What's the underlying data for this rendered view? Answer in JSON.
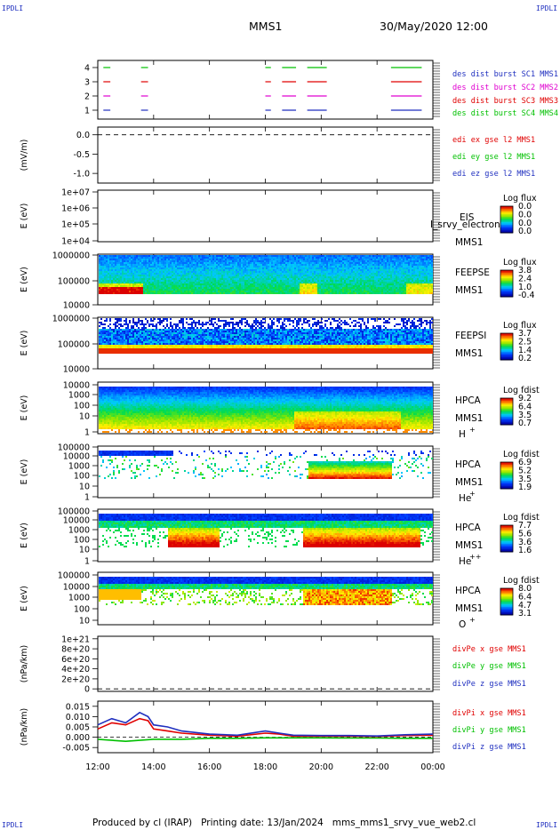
{
  "header": {
    "left_title": "MMS1",
    "right_title": "30/May/2020 12:00"
  },
  "corners": {
    "tl": "IPDLI",
    "tr": "IPDLI",
    "bl": "IPDLI",
    "br": "IPDLI"
  },
  "footer": {
    "produced": "Produced by cl (IRAP)",
    "printing": "Printing date: 13/Jan/2024",
    "file": "mms_mms1_srvy_vue_web2.cl"
  },
  "colors": {
    "blue": "#1f2fbf",
    "magenta": "#e000d0",
    "red": "#e00000",
    "green": "#00c000",
    "black": "#000000"
  },
  "chart_data": [
    {
      "id": "burst",
      "type": "line",
      "x_range": [
        "12:00",
        "00:00"
      ],
      "ylim": [
        0.5,
        4.5
      ],
      "yticks": [
        "4",
        "3",
        "2",
        "1"
      ],
      "legend": [
        {
          "label": "des dist burst SC1 MMS1",
          "color": "#1f2fbf"
        },
        {
          "label": "des dist burst SC2 MMS2",
          "color": "#e000d0"
        },
        {
          "label": "des dist burst SC3 MMS3",
          "color": "#e00000"
        },
        {
          "label": "des dist burst SC4 MMS4",
          "color": "#00c000"
        }
      ],
      "intervals_hours": [
        [
          12.2,
          12.45
        ],
        [
          13.55,
          13.8
        ],
        [
          18.0,
          18.2
        ],
        [
          18.6,
          19.1
        ],
        [
          19.5,
          20.2
        ],
        [
          22.5,
          23.6
        ]
      ]
    },
    {
      "id": "edi",
      "type": "line",
      "ylabel": "(mV/m)",
      "ylim": [
        -1.25,
        0.2
      ],
      "yticks": [
        "0.0",
        "-0.5",
        "-1.0"
      ],
      "series_value": 0.0,
      "legend": [
        {
          "label": "edi ex gse l2 MMS1",
          "color": "#e00000"
        },
        {
          "label": "edi ey gse l2 MMS1",
          "color": "#00c000"
        },
        {
          "label": "edi ez gse l2 MMS1",
          "color": "#1f2fbf"
        }
      ]
    },
    {
      "id": "eis",
      "type": "heatmap",
      "ylabel": "E (eV)",
      "yticks": [
        "1e+07",
        "1e+06",
        "1e+05",
        "1e+04"
      ],
      "instrument": [
        "EIS",
        "MMS1"
      ],
      "overlay_text": "I_srvy_electron to",
      "colorbar": {
        "title": "Log flux",
        "labels": [
          "0.0",
          "0.0",
          "0.0",
          "0.0"
        ]
      }
    },
    {
      "id": "feepse",
      "type": "heatmap",
      "ylabel": "E (eV)",
      "yticks": [
        "1000000",
        "100000",
        "10000"
      ],
      "instrument": [
        "FEEPSE",
        "MMS1"
      ],
      "colorbar": {
        "title": "Log flux",
        "labels": [
          "3.8",
          "2.4",
          "1.0",
          "-0.4"
        ]
      }
    },
    {
      "id": "feepsi",
      "type": "heatmap",
      "ylabel": "E (eV)",
      "yticks": [
        "1000000",
        "100000",
        "10000"
      ],
      "instrument": [
        "FEEPSI",
        "MMS1"
      ],
      "colorbar": {
        "title": "Log flux",
        "labels": [
          "3.7",
          "2.5",
          "1.4",
          "0.2"
        ]
      }
    },
    {
      "id": "hpca_h",
      "type": "heatmap",
      "ylabel": "E (eV)",
      "yticks": [
        "10000",
        "1000",
        "100",
        "10",
        "1"
      ],
      "instrument": [
        "HPCA",
        "MMS1"
      ],
      "species": "H",
      "charge": "+",
      "colorbar": {
        "title": "Log fdist",
        "labels": [
          "9.2",
          "6.4",
          "3.5",
          "0.7"
        ]
      }
    },
    {
      "id": "hpca_he",
      "type": "heatmap",
      "ylabel": "E (eV)",
      "yticks": [
        "100000",
        "10000",
        "1000",
        "100",
        "10",
        "1"
      ],
      "instrument": [
        "HPCA",
        "MMS1"
      ],
      "species": "He",
      "charge": "+",
      "colorbar": {
        "title": "Log fdist",
        "labels": [
          "6.9",
          "5.2",
          "3.5",
          "1.9"
        ]
      }
    },
    {
      "id": "hpca_hepp",
      "type": "heatmap",
      "ylabel": "E (eV)",
      "yticks": [
        "100000",
        "10000",
        "1000",
        "100",
        "10",
        "1"
      ],
      "instrument": [
        "HPCA",
        "MMS1"
      ],
      "species": "He",
      "charge": "++",
      "colorbar": {
        "title": "Log fdist",
        "labels": [
          "7.7",
          "5.6",
          "3.6",
          "1.6"
        ]
      }
    },
    {
      "id": "hpca_o",
      "type": "heatmap",
      "ylabel": "E (eV)",
      "yticks": [
        "100000",
        "10000",
        "1000",
        "100",
        "10"
      ],
      "instrument": [
        "HPCA",
        "MMS1"
      ],
      "species": "O",
      "charge": "+",
      "colorbar": {
        "title": "Log fdist",
        "labels": [
          "8.0",
          "6.4",
          "4.7",
          "3.1"
        ]
      }
    },
    {
      "id": "divpe",
      "type": "line",
      "ylabel": "(nPa/km)",
      "ylim": [
        -5e+19,
        1.05e+21
      ],
      "yticks": [
        "1e+21",
        "8e+20",
        "6e+20",
        "4e+20",
        "2e+20",
        "0"
      ],
      "series_value": 0,
      "legend": [
        {
          "label": "divPe x gse MMS1",
          "color": "#e00000"
        },
        {
          "label": "divPe y gse MMS1",
          "color": "#00c000"
        },
        {
          "label": "divPe z gse MMS1",
          "color": "#1f2fbf"
        }
      ]
    },
    {
      "id": "divpi",
      "type": "line",
      "ylabel": "(nPa/km)",
      "ylim": [
        -0.0075,
        0.0175
      ],
      "yticks": [
        "0.015",
        "0.010",
        "0.005",
        "0.000",
        "-0.005"
      ],
      "xticks": [
        "12:00",
        "14:00",
        "16:00",
        "18:00",
        "20:00",
        "22:00",
        "00:00"
      ],
      "legend": [
        {
          "label": "divPi x gse MMS1",
          "color": "#e00000"
        },
        {
          "label": "divPi y gse MMS1",
          "color": "#00c000"
        },
        {
          "label": "divPi z gse MMS1",
          "color": "#1f2fbf"
        }
      ],
      "series": [
        {
          "name": "divPi x gse MMS1",
          "x_hours": [
            12,
            12.5,
            13,
            13.5,
            13.8,
            14,
            14.5,
            15,
            16,
            17,
            18,
            18.5,
            19,
            20,
            21,
            22,
            23,
            24
          ],
          "values": [
            0.004,
            0.007,
            0.006,
            0.009,
            0.008,
            0.004,
            0.003,
            0.002,
            0.001,
            0.0005,
            0.002,
            0.0015,
            0.0005,
            0.0005,
            0.0005,
            0.0004,
            0.0008,
            0.001
          ]
        },
        {
          "name": "divPi y gse MMS1",
          "x_hours": [
            12,
            13,
            14,
            15,
            16,
            17,
            18,
            19,
            20,
            21,
            22,
            23,
            24
          ],
          "values": [
            -0.001,
            -0.002,
            -0.001,
            -0.001,
            -0.0005,
            -0.0005,
            -0.0003,
            -0.0003,
            -0.0003,
            -0.0004,
            -0.0004,
            -0.0005,
            -0.0005
          ]
        },
        {
          "name": "divPi z gse MMS1",
          "x_hours": [
            12,
            12.5,
            13,
            13.5,
            13.8,
            14,
            14.5,
            15,
            16,
            17,
            18,
            18.5,
            19,
            20,
            21,
            22,
            23,
            24
          ],
          "values": [
            0.006,
            0.009,
            0.007,
            0.012,
            0.01,
            0.006,
            0.005,
            0.003,
            0.0015,
            0.001,
            0.003,
            0.002,
            0.001,
            0.0008,
            0.0008,
            0.0006,
            0.0012,
            0.0015
          ]
        }
      ]
    }
  ]
}
